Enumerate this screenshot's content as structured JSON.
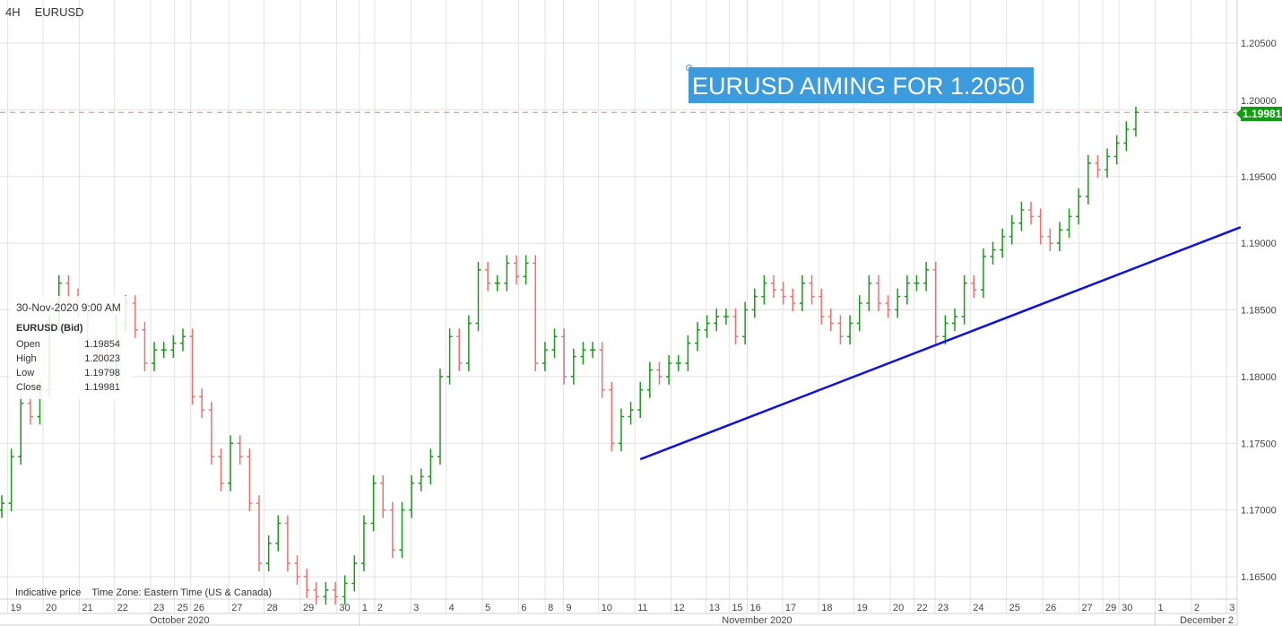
{
  "header": {
    "timeframe": "4H",
    "symbol": "EURUSD"
  },
  "annotation": {
    "text": "EURUSD AIMING FOR 1.2050",
    "color": "#3b9bdc"
  },
  "tooltip": {
    "datetime": "30-Nov-2020 9:00 AM",
    "symbol": "EURUSD (Bid)",
    "rows": [
      {
        "label": "Open",
        "value": "1.19854"
      },
      {
        "label": "High",
        "value": "1.20023"
      },
      {
        "label": "Low",
        "value": "1.19798"
      },
      {
        "label": "Close",
        "value": "1.19981"
      }
    ]
  },
  "footer": {
    "note": "Indicative price",
    "timezone": "Time Zone: Eastern Time (US & Canada)"
  },
  "current_price": {
    "label": "1.19981",
    "value": 1.19981,
    "color": "#119d11"
  },
  "chart_data": {
    "type": "ohlc",
    "colors": {
      "up": "#1a9a1a",
      "down": "#f07070",
      "trendline": "#1010e0",
      "price_line": "#f08080"
    },
    "ylim": [
      1.163,
      1.208
    ],
    "yticks": [
      "1.16500",
      "1.17000",
      "1.17500",
      "1.18000",
      "1.18500",
      "1.19000",
      "1.19500",
      "1.20000",
      "1.20500"
    ],
    "grid": true,
    "close": [
      1.1705,
      1.174,
      1.178,
      1.177,
      1.179,
      1.184,
      1.187,
      1.186,
      1.185,
      1.1825,
      1.1815,
      1.18,
      1.184,
      1.1855,
      1.1835,
      1.181,
      1.182,
      1.182,
      1.1825,
      1.183,
      1.1785,
      1.1775,
      1.174,
      1.172,
      1.175,
      1.174,
      1.1705,
      1.166,
      1.1675,
      1.169,
      1.166,
      1.165,
      1.164,
      1.1635,
      1.164,
      1.1635,
      1.1645,
      1.166,
      1.169,
      1.172,
      1.17,
      1.167,
      1.17,
      1.172,
      1.1725,
      1.174,
      1.18,
      1.183,
      1.181,
      1.184,
      1.188,
      1.187,
      1.187,
      1.1885,
      1.1875,
      1.1885,
      1.181,
      1.182,
      1.183,
      1.18,
      1.1815,
      1.182,
      1.182,
      1.179,
      1.175,
      1.177,
      1.1775,
      1.179,
      1.1805,
      1.18,
      1.181,
      1.181,
      1.1825,
      1.1835,
      1.184,
      1.1845,
      1.1845,
      1.183,
      1.185,
      1.186,
      1.187,
      1.1865,
      1.186,
      1.1855,
      1.187,
      1.186,
      1.1845,
      1.184,
      1.183,
      1.184,
      1.1855,
      1.187,
      1.1855,
      1.185,
      1.186,
      1.187,
      1.187,
      1.188,
      1.183,
      1.184,
      1.1845,
      1.187,
      1.1865,
      1.189,
      1.1895,
      1.1905,
      1.1915,
      1.1925,
      1.192,
      1.1905,
      1.19,
      1.191,
      1.192,
      1.1935,
      1.196,
      1.1955,
      1.1965,
      1.1975,
      1.19854,
      1.19981
    ],
    "last_bar": {
      "open": 1.19854,
      "high": 1.20023,
      "low": 1.19798,
      "close": 1.19981
    },
    "x_ticks": [
      {
        "label": "19",
        "bar": 1
      },
      {
        "label": "20",
        "bar": 4.7
      },
      {
        "label": "21",
        "bar": 8.5
      },
      {
        "label": "22",
        "bar": 12.2
      },
      {
        "label": "23",
        "bar": 16
      },
      {
        "label": "25",
        "bar": 18.5
      },
      {
        "label": "26",
        "bar": 20.2
      },
      {
        "label": "27",
        "bar": 24.2
      },
      {
        "label": "28",
        "bar": 27.9
      },
      {
        "label": "29",
        "bar": 31.7
      },
      {
        "label": "30",
        "bar": 35.5
      },
      {
        "label": "1",
        "bar": 37.9
      },
      {
        "label": "2",
        "bar": 39.5
      },
      {
        "label": "3",
        "bar": 43.3
      },
      {
        "label": "4",
        "bar": 47
      },
      {
        "label": "5",
        "bar": 50.8
      },
      {
        "label": "6",
        "bar": 54.6
      },
      {
        "label": "8",
        "bar": 57.4
      },
      {
        "label": "9",
        "bar": 59.3
      },
      {
        "label": "10",
        "bar": 63
      },
      {
        "label": "11",
        "bar": 66.8
      },
      {
        "label": "12",
        "bar": 70.6
      },
      {
        "label": "13",
        "bar": 74.3
      },
      {
        "label": "15",
        "bar": 76.7
      },
      {
        "label": "16",
        "bar": 78.6
      },
      {
        "label": "17",
        "bar": 82.3
      },
      {
        "label": "18",
        "bar": 86.1
      },
      {
        "label": "19",
        "bar": 89.8
      },
      {
        "label": "20",
        "bar": 93.6
      },
      {
        "label": "22",
        "bar": 96.1
      },
      {
        "label": "23",
        "bar": 98.3
      },
      {
        "label": "24",
        "bar": 102
      },
      {
        "label": "25",
        "bar": 105.8
      },
      {
        "label": "26",
        "bar": 109.6
      },
      {
        "label": "27",
        "bar": 113.4
      },
      {
        "label": "29",
        "bar": 115.9
      },
      {
        "label": "30",
        "bar": 117.6
      },
      {
        "label": "1",
        "bar": 121.4
      },
      {
        "label": "2",
        "bar": 125.2
      },
      {
        "label": "3",
        "bar": 128.9
      }
    ],
    "months": [
      {
        "label": "October 2020",
        "from": -1,
        "to": 37.5
      },
      {
        "label": "November 2020",
        "from": 37.5,
        "to": 121
      },
      {
        "label": "December 2",
        "from": 121,
        "to": 130
      }
    ],
    "trendline": {
      "from": {
        "bar": 67,
        "price": 1.1738
      },
      "to": {
        "bar": 130,
        "price": 1.1912
      }
    }
  }
}
